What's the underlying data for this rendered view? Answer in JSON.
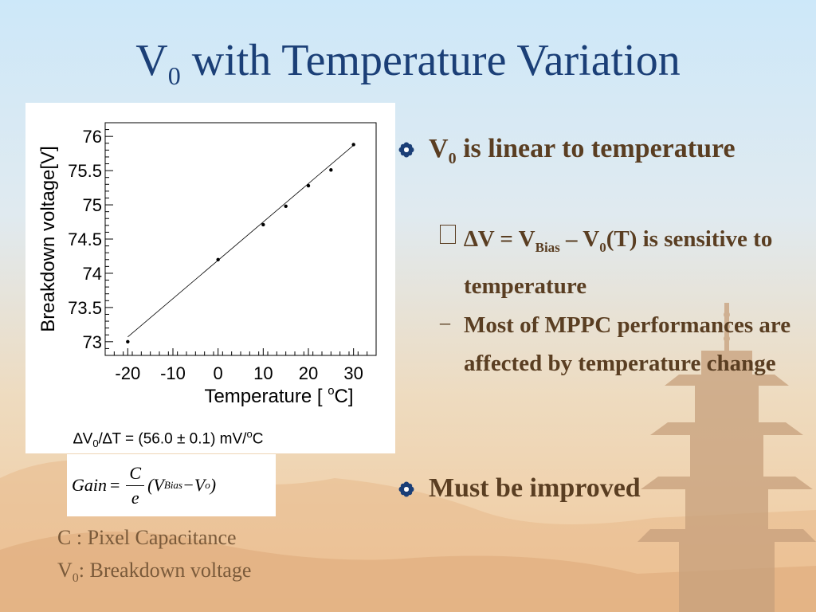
{
  "title": {
    "main": "V",
    "sub": "0",
    "rest": " with Temperature Variation"
  },
  "chart_data": {
    "type": "scatter",
    "title": "",
    "xlabel": "Temperature [ oC]",
    "xlabel_main": "Temperature [ ",
    "xlabel_sup": "o",
    "xlabel_end": "C]",
    "ylabel": "Breakdown voltage[V]",
    "xlim": [
      -25,
      35
    ],
    "ylim": [
      72.8,
      76.2
    ],
    "xticks": [
      -20,
      -10,
      0,
      10,
      20,
      30
    ],
    "yticks": [
      73,
      73.5,
      74,
      74.5,
      75,
      75.5,
      76
    ],
    "ytick_labels": [
      "73",
      "73.5",
      "74",
      "74.5",
      "75",
      "75.5",
      "76"
    ],
    "series": [
      {
        "x": [
          -20,
          0,
          10,
          15,
          20,
          25,
          30
        ],
        "y": [
          73.0,
          74.2,
          74.71,
          74.98,
          75.28,
          75.51,
          75.88
        ]
      }
    ],
    "fit_line": {
      "x": [
        -20,
        30
      ],
      "y": [
        73.07,
        75.87
      ]
    },
    "grid": false,
    "legend": "none"
  },
  "slope": {
    "delta": "∆",
    "v": "V",
    "v_sub": "0",
    "slash": "/",
    "t": "T = (56.0 ± 0.1) mV/",
    "o": "o",
    "c": "C"
  },
  "gain": {
    "lhs": "Gain",
    "eq": "=",
    "num": "C",
    "den": "e",
    "open": "(V",
    "bias": "Bias",
    "minus": " −V",
    "o": "o",
    "close": ")"
  },
  "notes": [
    {
      "text": "C : Pixel Capacitance"
    },
    {
      "main": "V",
      "sub": "0",
      "rest": ": Breakdown voltage"
    }
  ],
  "bullets": {
    "b1": {
      "v": "V",
      "v_sub": "0",
      "rest": " is linear to temperature"
    },
    "sub1": {
      "marker": "",
      "delta": "∆V = V",
      "bias": "Bias",
      "mid": " – V",
      "zero": "0",
      "rest": "(T) is sensitive to temperature"
    },
    "sub2": {
      "marker": "–",
      "text": "Most of MPPC performances are affected by temperature change"
    },
    "b2": {
      "text": "Must be improved"
    }
  },
  "colors": {
    "title": "#1b3f77",
    "bullet_text": "#5a3e22",
    "note_text": "#7a5a3a",
    "bullet_icon": "#1b3f77"
  }
}
